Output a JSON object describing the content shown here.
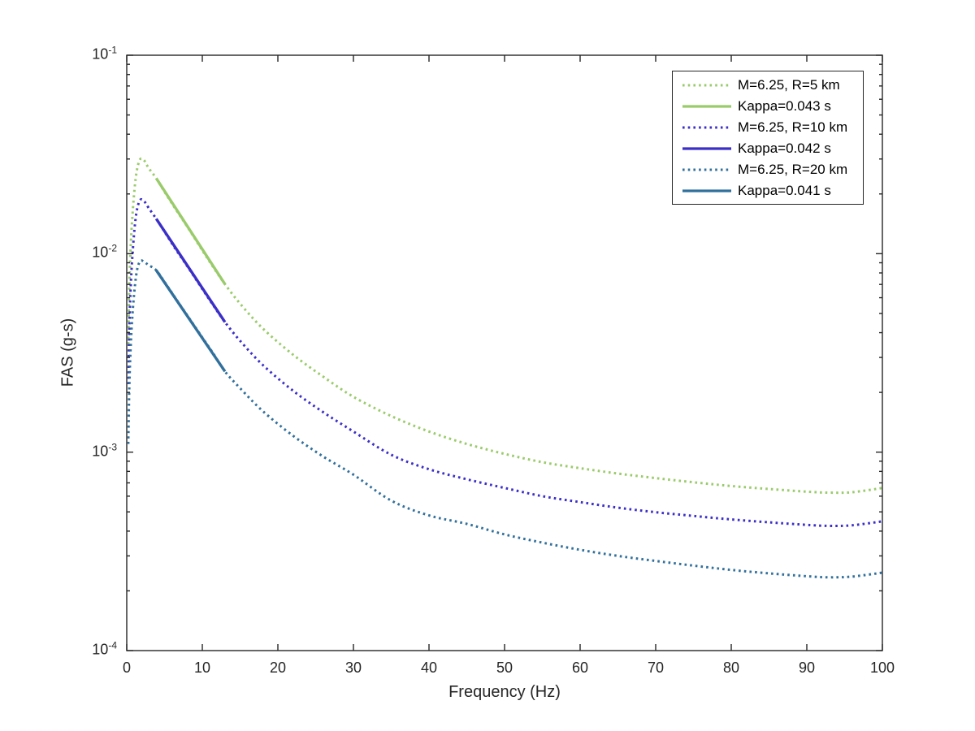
{
  "figure": {
    "background": "#ffffff"
  },
  "axes": {
    "xlabel": "Frequency (Hz)",
    "ylabel": "FAS (g-s)",
    "xlim": [
      0,
      100
    ],
    "xticks": [
      0,
      10,
      20,
      30,
      40,
      50,
      60,
      70,
      80,
      90,
      100
    ],
    "ytick_base": "10",
    "yticks_exponents": [
      -1,
      -2,
      -3,
      -4
    ],
    "yscale": "log",
    "axis_color": "#262626",
    "grid": false
  },
  "legend": {
    "position": "northeast",
    "entries": [
      {
        "label": "M=6.25, R=5 km",
        "style": "dotted",
        "color": "#9ACB6B"
      },
      {
        "label": "Kappa=0.043 s",
        "style": "solid",
        "color": "#9ACB6B"
      },
      {
        "label": "M=6.25, R=10 km",
        "style": "dotted",
        "color": "#3B2FC8"
      },
      {
        "label": "Kappa=0.042 s",
        "style": "solid",
        "color": "#3B2FC8"
      },
      {
        "label": "M=6.25, R=20 km",
        "style": "dotted",
        "color": "#31709C"
      },
      {
        "label": "Kappa=0.041 s",
        "style": "solid",
        "color": "#31709C"
      }
    ]
  },
  "chart_data": {
    "type": "line",
    "title": "",
    "xlabel": "Frequency (Hz)",
    "ylabel": "FAS (g-s)",
    "xlim": [
      0,
      100
    ],
    "ylim": [
      0.0001,
      0.1
    ],
    "yscale": "log",
    "grid": false,
    "legend_position": "northeast",
    "x_hz": [
      0.2,
      0.35,
      0.55,
      0.8,
      1.1,
      1.4,
      1.8,
      2.3,
      2.9,
      3.9,
      5,
      6.5,
      8,
      10,
      11.5,
      13,
      15,
      18,
      22,
      26,
      30,
      35,
      40,
      45,
      50,
      55,
      60,
      65,
      70,
      75,
      80,
      85,
      90,
      93,
      96,
      100
    ],
    "series": [
      {
        "name": "M=6.25, R=5 km",
        "style": "dotted",
        "color": "#9ACB6B",
        "values": [
          0.0035,
          0.007,
          0.0115,
          0.0165,
          0.0225,
          0.027,
          0.03,
          0.0295,
          0.027,
          0.024,
          0.0205,
          0.0167,
          0.0137,
          0.0104,
          0.0085,
          0.00702,
          0.0056,
          0.0042,
          0.0031,
          0.0024,
          0.0019,
          0.00152,
          0.00127,
          0.0011,
          0.00098,
          0.00089,
          0.00083,
          0.00078,
          0.00074,
          0.000705,
          0.000675,
          0.000652,
          0.000632,
          0.000625,
          0.000628,
          0.00066
        ]
      },
      {
        "name": "Kappa=0.043 s",
        "style": "solid",
        "color": "#9ACB6B",
        "x_hz": [
          3.9,
          13.0
        ],
        "values": [
          0.024,
          0.00702
        ]
      },
      {
        "name": "M=6.25, R=10 km",
        "style": "dotted",
        "color": "#3B2FC8",
        "values": [
          0.0022,
          0.0044,
          0.0072,
          0.0104,
          0.0142,
          0.017,
          0.0187,
          0.0184,
          0.017,
          0.015,
          0.0129,
          0.0105,
          0.00866,
          0.00664,
          0.00546,
          0.00452,
          0.00364,
          0.00275,
          0.00204,
          0.00159,
          0.00127,
          0.00097,
          0.00082,
          0.00073,
          0.00066,
          0.0006,
          0.00056,
          0.000525,
          0.000498,
          0.000477,
          0.000458,
          0.000443,
          0.00043,
          0.000425,
          0.000428,
          0.000448
        ]
      },
      {
        "name": "Kappa=0.042 s",
        "style": "solid",
        "color": "#3B2FC8",
        "x_hz": [
          3.9,
          13.0
        ],
        "values": [
          0.015,
          0.00452
        ]
      },
      {
        "name": "M=6.25, R=20 km",
        "style": "dotted",
        "color": "#31709C",
        "values": [
          0.0011,
          0.0022,
          0.0036,
          0.0052,
          0.007,
          0.0084,
          0.0092,
          0.0091,
          0.00875,
          0.00825,
          0.0072,
          0.00593,
          0.00489,
          0.00378,
          0.00312,
          0.00255,
          0.0021,
          0.00161,
          0.00121,
          0.00095,
          0.00077,
          0.00057,
          0.00048,
          0.000435,
          0.000385,
          0.00035,
          0.000322,
          0.0003,
          0.000283,
          0.000268,
          0.000255,
          0.000245,
          0.000237,
          0.000234,
          0.000236,
          0.000247
        ]
      },
      {
        "name": "Kappa=0.041 s",
        "style": "solid",
        "color": "#31709C",
        "x_hz": [
          3.9,
          13.0
        ],
        "values": [
          0.00825,
          0.00255
        ]
      }
    ]
  }
}
